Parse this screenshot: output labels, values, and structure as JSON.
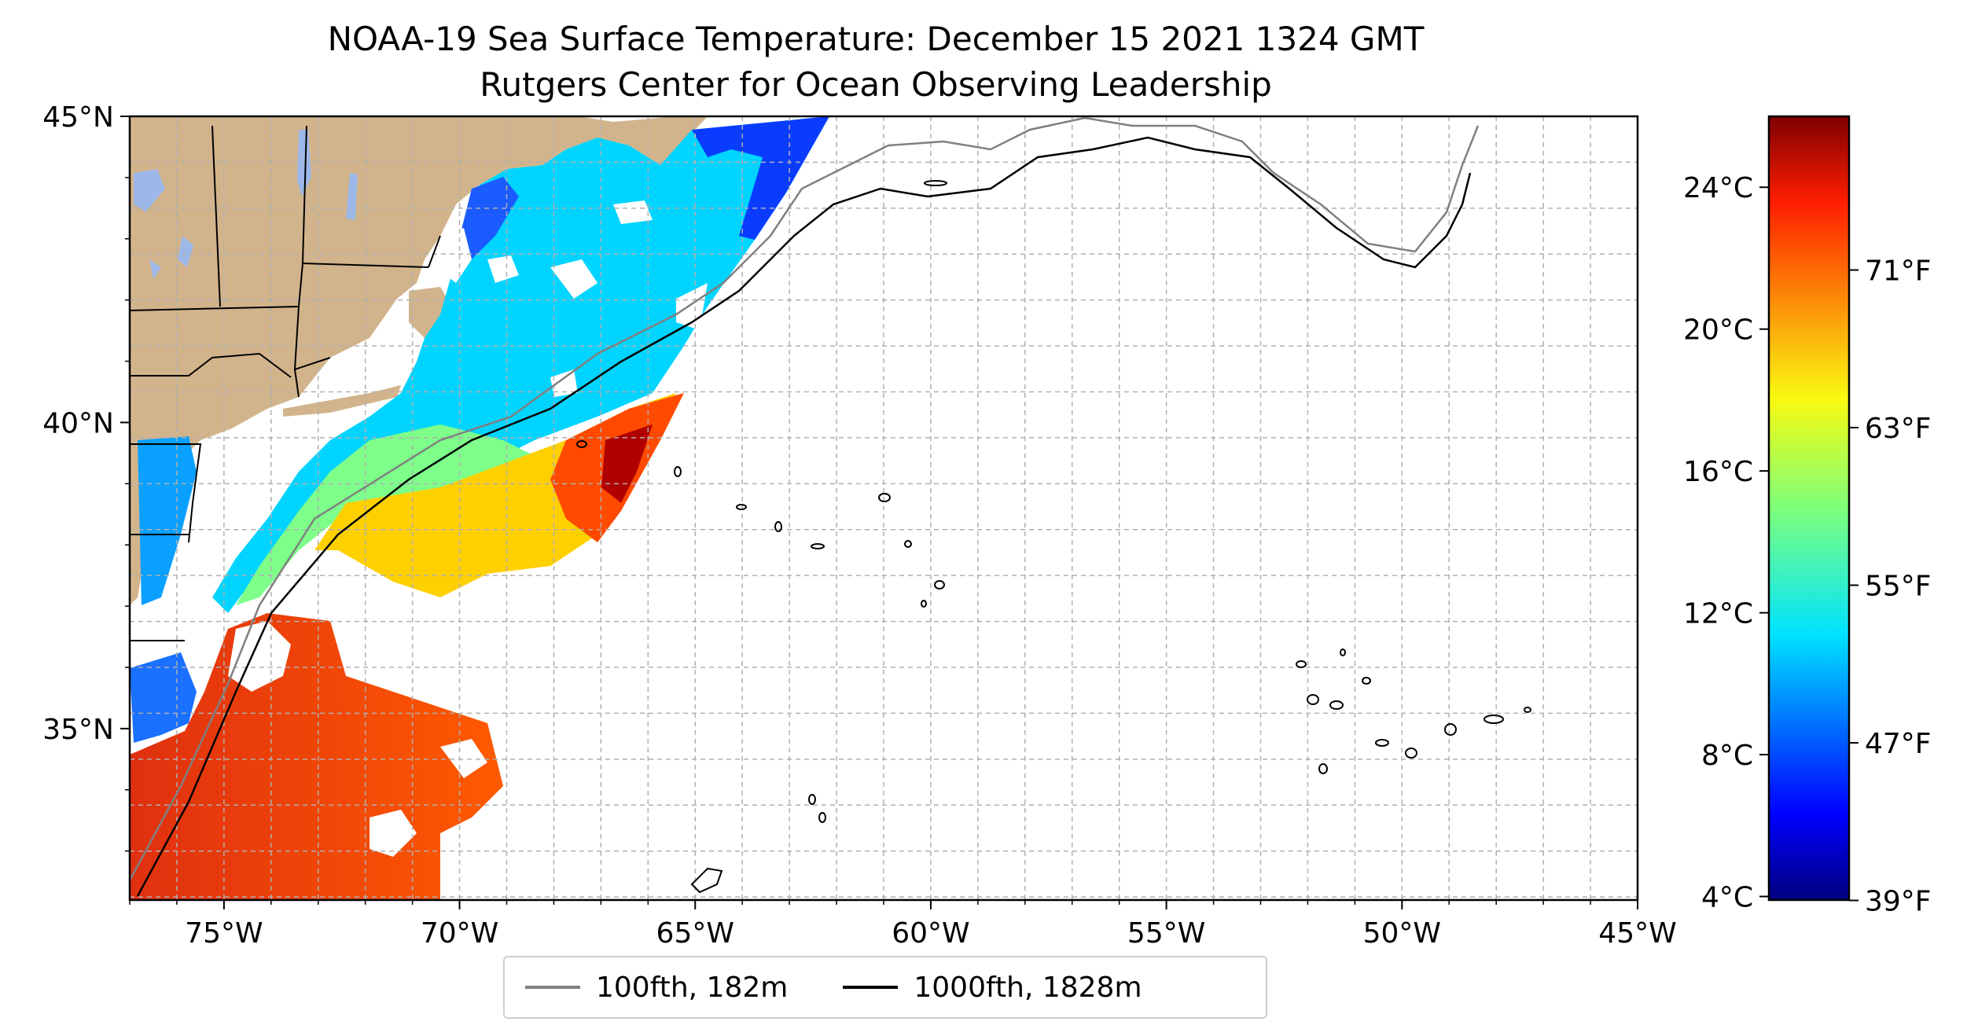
{
  "title": {
    "line1": "NOAA-19 Sea Surface Temperature: December 15 2021 1324 GMT",
    "line2": "Rutgers Center for Ocean Observing Leadership"
  },
  "map": {
    "lon_range": [
      -77,
      -45
    ],
    "lat_range": [
      32.2,
      45
    ],
    "lon_ticks": [
      "75°W",
      "70°W",
      "65°W",
      "60°W",
      "55°W",
      "50°W",
      "45°W"
    ],
    "lat_ticks": [
      "35°N",
      "40°N",
      "45°N"
    ],
    "land_color": "#d2b48c",
    "lake_color": "#9db8e8",
    "gridlines": true
  },
  "colorbar": {
    "colormap": "jet",
    "celsius_ticks": [
      "4°C",
      "8°C",
      "12°C",
      "16°C",
      "20°C",
      "24°C"
    ],
    "fahrenheit_ticks": [
      "39°F",
      "47°F",
      "55°F",
      "63°F",
      "71°F"
    ],
    "range_c": [
      3.9,
      26
    ]
  },
  "legend": {
    "items": [
      {
        "label": "100fth, 182m",
        "color": "#808080"
      },
      {
        "label": "1000fth, 1828m",
        "color": "#000000"
      }
    ]
  }
}
